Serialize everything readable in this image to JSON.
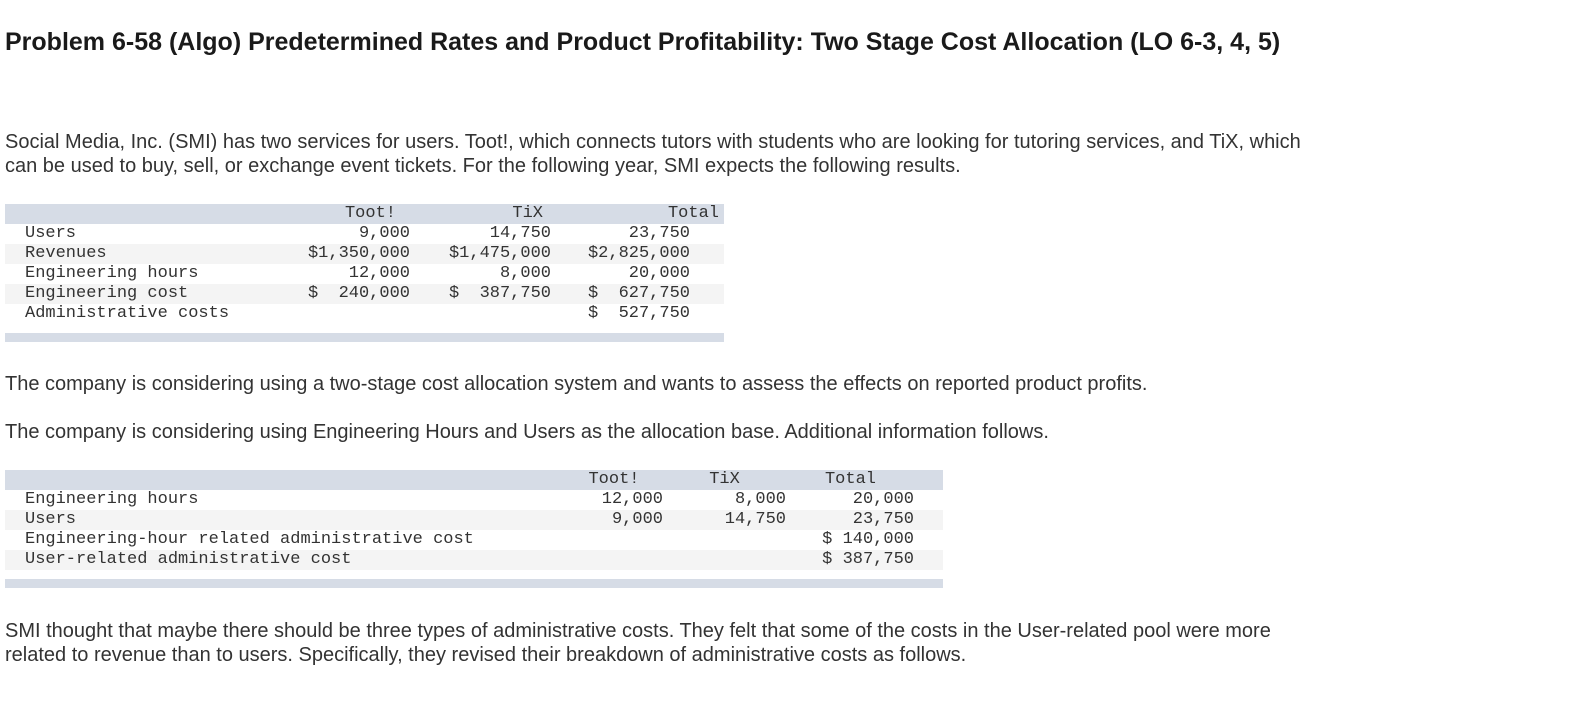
{
  "title": "Problem 6-58 (Algo) Predetermined Rates and Product Profitability: Two Stage Cost Allocation (LO 6-3, 4, 5)",
  "paragraphs": [
    "Social Media, Inc. (SMI) has two services for users. Toot!, which connects tutors with students who are looking for tutoring services, and TiX, which can be used to buy, sell, or exchange event tickets. For the following year, SMI expects the following results.",
    "The company is considering using a two-stage cost allocation system and wants to assess the effects on reported product profits.",
    "The company is considering using Engineering Hours and Users as the allocation base. Additional information follows.",
    "SMI thought that maybe there should be three types of administrative costs. They felt that some of the costs in the User-related pool were more related to revenue than to users. Specifically, they revised their breakdown of administrative costs as follows."
  ],
  "tables": [
    {
      "header": [
        "Toot!",
        "TiX",
        "Total"
      ],
      "rows": [
        [
          "Users",
          "9,000",
          "14,750",
          "23,750"
        ],
        [
          "Revenues",
          "$1,350,000",
          "$1,475,000",
          "$2,825,000"
        ],
        [
          "Engineering hours",
          "12,000",
          "8,000",
          "20,000"
        ],
        [
          "Engineering cost",
          "$  240,000",
          "$  387,750",
          "$  627,750"
        ],
        [
          "Administrative costs",
          null,
          null,
          "$  527,750"
        ]
      ]
    },
    {
      "header": [
        "Toot!",
        "TiX",
        "Total"
      ],
      "rows": [
        [
          "Engineering hours",
          "12,000",
          "8,000",
          "20,000"
        ],
        [
          "Users",
          "9,000",
          "14,750",
          "23,750"
        ],
        [
          "Engineering-hour related administrative cost",
          null,
          null,
          "$ 140,000"
        ],
        [
          "User-related administrative cost",
          null,
          null,
          "$ 387,750"
        ]
      ]
    }
  ]
}
